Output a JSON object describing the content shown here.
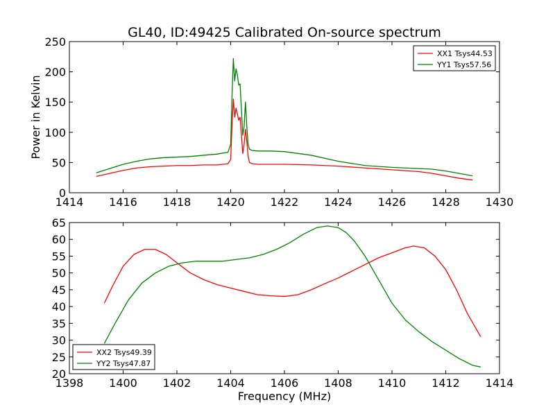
{
  "chart_data": [
    {
      "type": "line",
      "title": "GL40, ID:49425 Calibrated On-source spectrum",
      "xlabel": "",
      "ylabel": "Power in Kelvin",
      "xlim": [
        1414,
        1430
      ],
      "ylim": [
        0,
        250
      ],
      "xticks": [
        1414,
        1416,
        1418,
        1420,
        1422,
        1424,
        1426,
        1428,
        1430
      ],
      "yticks": [
        0,
        50,
        100,
        150,
        200,
        250
      ],
      "legend_position": "top-right",
      "series": [
        {
          "name": "XX1 Tsys44.53",
          "color": "#ff0000",
          "x": [
            1415.0,
            1415.5,
            1416.0,
            1416.5,
            1417.0,
            1417.5,
            1418.0,
            1418.5,
            1419.0,
            1419.5,
            1419.9,
            1420.0,
            1420.05,
            1420.1,
            1420.15,
            1420.2,
            1420.25,
            1420.3,
            1420.35,
            1420.45,
            1420.5,
            1420.55,
            1420.6,
            1420.65,
            1420.7,
            1420.8,
            1421.0,
            1421.5,
            1422.0,
            1423.0,
            1424.0,
            1425.0,
            1426.0,
            1427.0,
            1427.5,
            1428.0,
            1428.5,
            1429.0
          ],
          "y": [
            27,
            32,
            37,
            41,
            43,
            44,
            45,
            45,
            46,
            46,
            48,
            55,
            110,
            155,
            125,
            140,
            130,
            120,
            125,
            65,
            80,
            105,
            85,
            60,
            50,
            48,
            47,
            47,
            47,
            46,
            44,
            41,
            38,
            35,
            32,
            28,
            24,
            21
          ]
        },
        {
          "name": "YY1 Tsys57.56",
          "color": "#008000",
          "x": [
            1415.0,
            1415.5,
            1416.0,
            1416.5,
            1417.0,
            1417.5,
            1418.0,
            1418.5,
            1419.0,
            1419.5,
            1419.9,
            1420.0,
            1420.05,
            1420.1,
            1420.15,
            1420.2,
            1420.25,
            1420.3,
            1420.35,
            1420.45,
            1420.5,
            1420.55,
            1420.6,
            1420.65,
            1420.7,
            1420.8,
            1421.0,
            1421.5,
            1422.0,
            1423.0,
            1424.0,
            1425.0,
            1426.0,
            1427.0,
            1427.5,
            1428.0,
            1428.5,
            1429.0
          ],
          "y": [
            33,
            40,
            47,
            52,
            56,
            58,
            59,
            60,
            62,
            64,
            67,
            80,
            160,
            222,
            185,
            205,
            195,
            178,
            180,
            95,
            110,
            150,
            110,
            80,
            72,
            70,
            69,
            69,
            68,
            62,
            52,
            45,
            42,
            40,
            39,
            36,
            32,
            28
          ]
        }
      ]
    },
    {
      "type": "line",
      "title": "",
      "xlabel": "Frequency (MHz)",
      "ylabel": "",
      "xlim": [
        1398,
        1414
      ],
      "ylim": [
        20,
        65
      ],
      "xticks": [
        1398,
        1400,
        1402,
        1404,
        1406,
        1408,
        1410,
        1412,
        1414
      ],
      "yticks": [
        20,
        25,
        30,
        35,
        40,
        45,
        50,
        55,
        60,
        65
      ],
      "legend_position": "bottom-left",
      "series": [
        {
          "name": "XX2 Tsys49.39",
          "color": "#ff0000",
          "x": [
            1399.3,
            1399.6,
            1400.0,
            1400.4,
            1400.8,
            1401.2,
            1401.6,
            1402.0,
            1402.5,
            1403.0,
            1403.5,
            1404.0,
            1404.5,
            1405.0,
            1405.5,
            1406.0,
            1406.5,
            1407.0,
            1407.5,
            1408.0,
            1408.5,
            1409.0,
            1409.5,
            1410.0,
            1410.5,
            1410.8,
            1411.2,
            1411.6,
            1412.0,
            1412.4,
            1412.8,
            1413.3
          ],
          "y": [
            41,
            46,
            52,
            55.5,
            57,
            57,
            55.5,
            53,
            50,
            48,
            46.5,
            45.5,
            44.5,
            43.5,
            43.2,
            43,
            43.5,
            45,
            46.8,
            48.5,
            50.5,
            52.5,
            54.5,
            56,
            57.5,
            58,
            57.5,
            55,
            51,
            45,
            38,
            31
          ]
        },
        {
          "name": "YY2 Tsys47.87",
          "color": "#008000",
          "x": [
            1399.3,
            1399.7,
            1400.2,
            1400.7,
            1401.2,
            1401.7,
            1402.2,
            1402.7,
            1403.2,
            1403.7,
            1404.2,
            1404.7,
            1405.2,
            1405.7,
            1406.2,
            1406.7,
            1407.2,
            1407.6,
            1408.0,
            1408.3,
            1408.6,
            1409.0,
            1409.5,
            1410.0,
            1410.5,
            1411.0,
            1411.5,
            1412.0,
            1412.5,
            1413.0,
            1413.3
          ],
          "y": [
            29,
            35,
            42,
            47,
            50,
            52,
            53,
            53.5,
            53.5,
            53.5,
            54,
            54.5,
            55.5,
            57,
            59,
            61.5,
            63.5,
            64,
            63.5,
            62,
            59.5,
            55,
            48,
            41,
            36,
            32.5,
            29.5,
            27,
            24.5,
            22.5,
            22
          ]
        }
      ]
    }
  ]
}
